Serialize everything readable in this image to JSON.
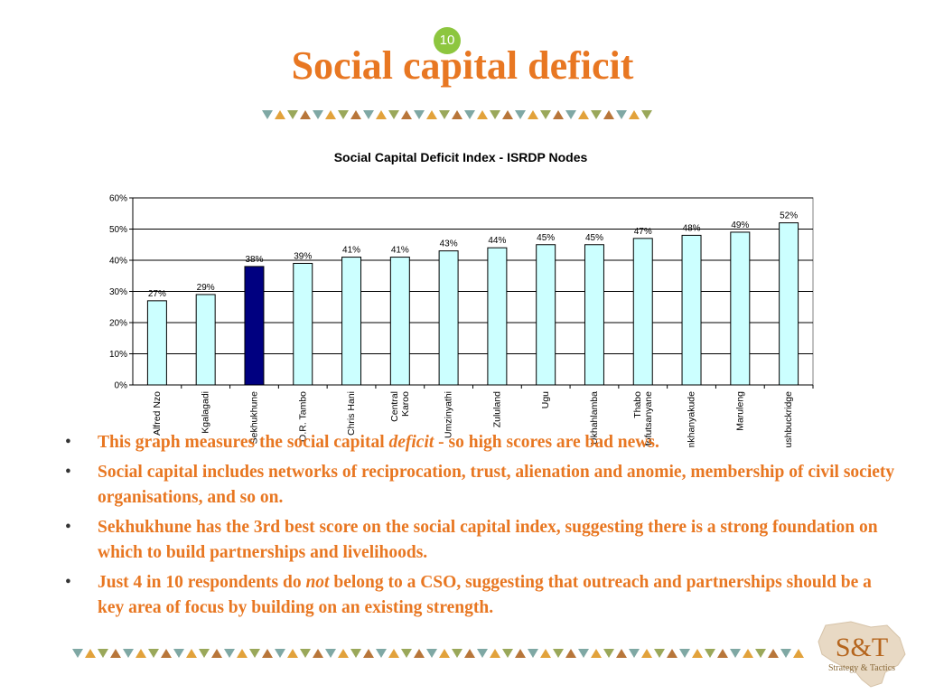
{
  "slide": {
    "number": "10",
    "title": "Social capital deficit"
  },
  "colors": {
    "accent": "#e87722",
    "bar_fill": "#ccffff",
    "bar_highlight": "#000080",
    "bar_stroke": "#000000",
    "badge": "#8dc63f"
  },
  "chart_data": {
    "type": "bar",
    "title": "Social Capital Deficit Index - ISRDP Nodes",
    "categories": [
      "Alfred Nzo",
      "Kgalagadi",
      "Sekhukhune",
      "O.R. Tambo",
      "Chris Hani",
      "Central Karoo",
      "Umzinyathi",
      "Zululand",
      "Ugu",
      "Ukhahlamba",
      "Thabo Mofutsanyane",
      "Umkhanyakude",
      "Maruleng",
      "Bushbuckridge"
    ],
    "values": [
      27,
      29,
      38,
      39,
      41,
      41,
      43,
      44,
      45,
      45,
      47,
      48,
      49,
      52
    ],
    "data_labels": [
      "27%",
      "29%",
      "38%",
      "39%",
      "41%",
      "41%",
      "43%",
      "44%",
      "45%",
      "45%",
      "47%",
      "48%",
      "49%",
      "52%"
    ],
    "highlight_index": 2,
    "ylim": [
      0,
      60
    ],
    "yticks": [
      0,
      10,
      20,
      30,
      40,
      50,
      60
    ],
    "ytick_labels": [
      "0%",
      "10%",
      "20%",
      "30%",
      "40%",
      "50%",
      "60%"
    ],
    "xlabel": "",
    "ylabel": "",
    "grid": true,
    "legend": "none"
  },
  "bullets": [
    {
      "parts": [
        {
          "text": "This graph measures the social capital "
        },
        {
          "text": "deficit",
          "em": true
        },
        {
          "text": " - so high scores are bad news."
        }
      ]
    },
    {
      "parts": [
        {
          "text": "Social capital includes networks of reciprocation, trust, alienation and anomie, membership of civil society organisations, and so on."
        }
      ]
    },
    {
      "parts": [
        {
          "text": "Sekhukhune has the 3rd best score on the social capital index, suggesting there is a strong foundation on which to build partnerships and livelihoods."
        }
      ]
    },
    {
      "parts": [
        {
          "text": "Just 4 in 10 respondents do "
        },
        {
          "text": "not",
          "em": true
        },
        {
          "text": " belong to a CSO, suggesting that outreach and partnerships should be a key area of focus by building on an existing strength."
        }
      ]
    }
  ],
  "bullet_marker": "•",
  "logo": {
    "main": "S&T",
    "tagline": "Strategy & Tactics"
  }
}
